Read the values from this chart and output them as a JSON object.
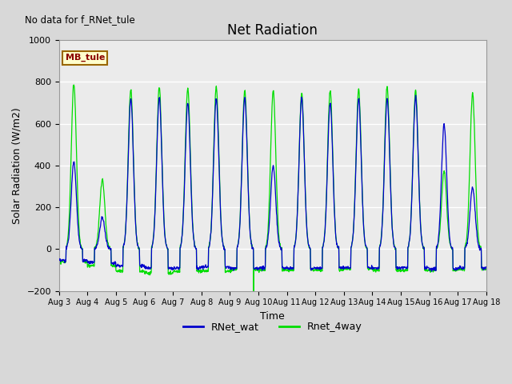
{
  "title": "Net Radiation",
  "xlabel": "Time",
  "ylabel": "Solar Radiation (W/m2)",
  "note": "No data for f_RNet_tule",
  "legend_label": "MB_tule",
  "line1_label": "RNet_wat",
  "line2_label": "Rnet_4way",
  "line1_color": "#0000cc",
  "line2_color": "#00dd00",
  "ylim": [
    -200,
    1000
  ],
  "yticks": [
    -200,
    0,
    200,
    400,
    600,
    800,
    1000
  ],
  "bg_color": "#d8d8d8",
  "plot_bg_color": "#ebebeb",
  "num_days": 15,
  "start_day": 3,
  "peak_values_wat": [
    420,
    150,
    720,
    725,
    700,
    720,
    725,
    400,
    725,
    700,
    720,
    720,
    730,
    600,
    295
  ],
  "peak_values_4way": [
    790,
    330,
    760,
    775,
    770,
    775,
    760,
    760,
    745,
    760,
    760,
    775,
    760,
    370,
    745
  ],
  "night_values_wat": [
    -55,
    -65,
    -80,
    -90,
    -90,
    -85,
    -90,
    -90,
    -90,
    -90,
    -90,
    -90,
    -90,
    -95,
    -90
  ],
  "night_values_4way": [
    -60,
    -80,
    -105,
    -115,
    -105,
    -105,
    -100,
    -100,
    -100,
    -100,
    -95,
    -100,
    -100,
    -100,
    -95
  ],
  "special_spike_4way_day": 6,
  "special_spike_4way_val": -225,
  "sigma": 0.09
}
